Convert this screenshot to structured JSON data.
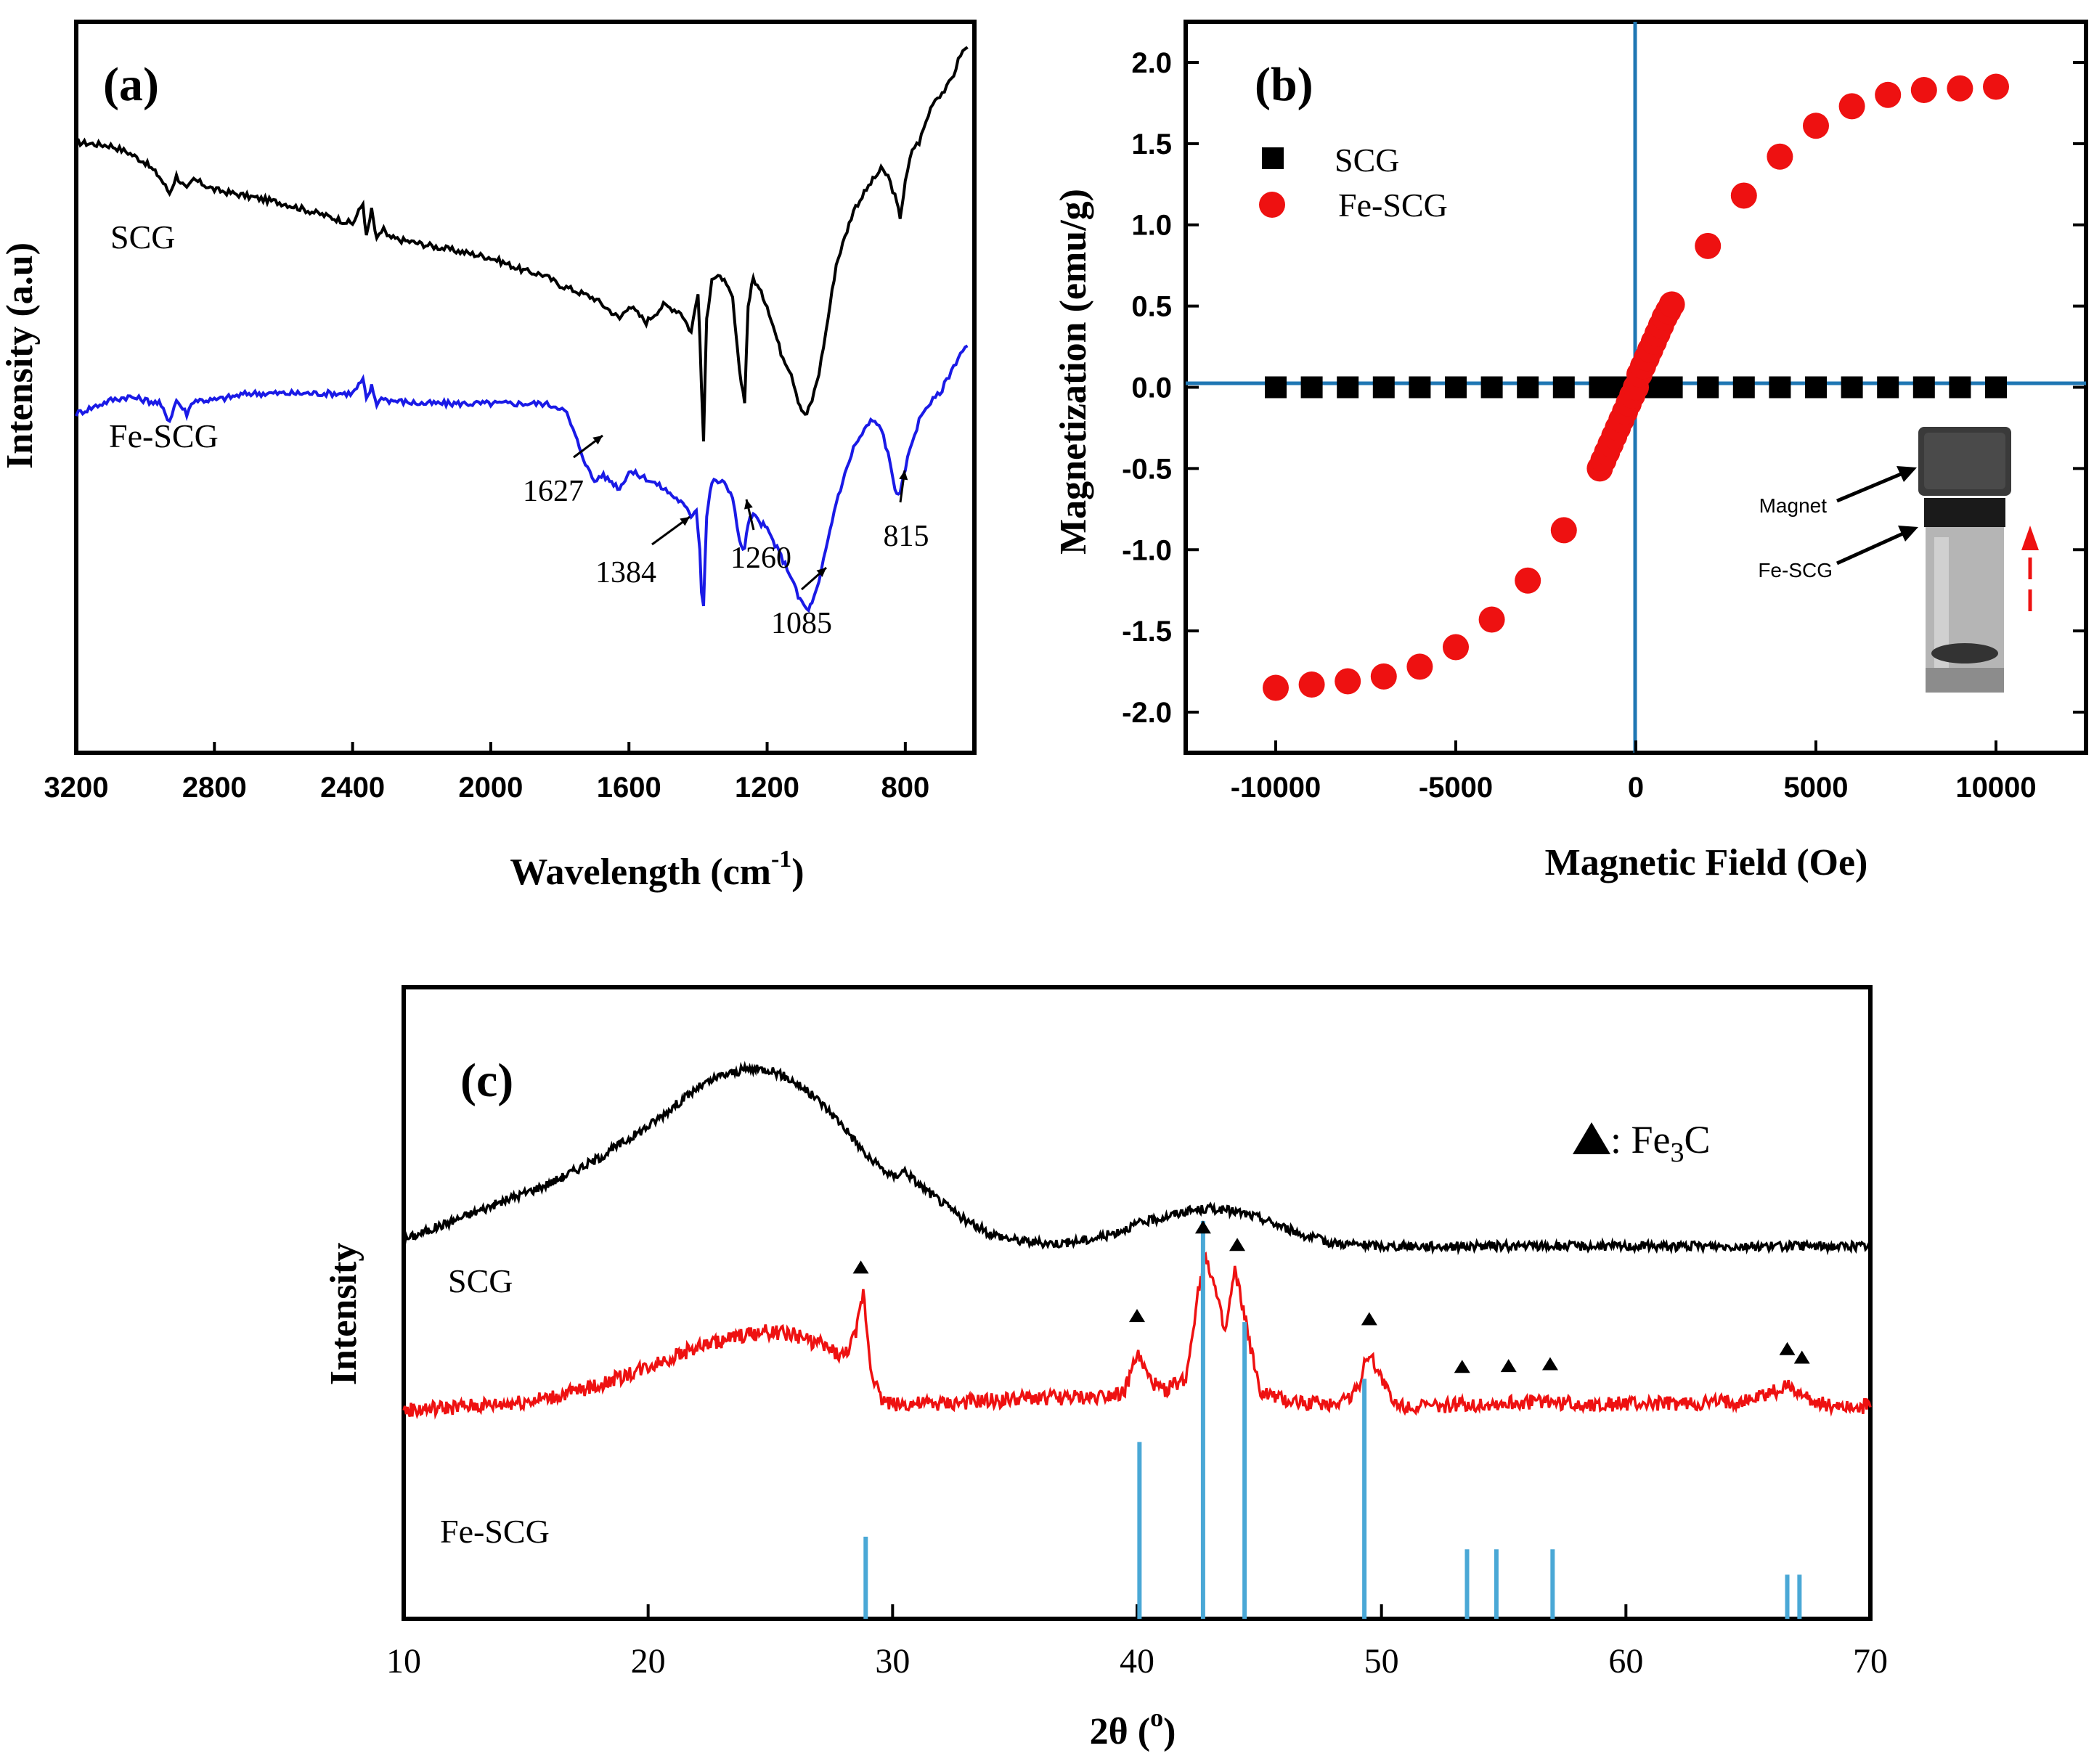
{
  "figure": {
    "panel_a": {
      "tag": "(a)",
      "xlabel": "Wavelength (cm",
      "xlabel_sup": "-1",
      "xlabel_close": ")",
      "ylabel": "Intensity (a.u)"
    },
    "panel_b": {
      "tag": "(b)",
      "xlabel": "Magnetic Field (Oe)",
      "ylabel": "Magnetization (emu/g)",
      "inset_labels": {
        "magnet": "Magnet",
        "sample": "Fe-SCG"
      }
    },
    "panel_c": {
      "tag": "(c)",
      "xlabel": "2θ (",
      "xlabel_sup": "o",
      "xlabel_close": ")",
      "ylabel": "Intensity",
      "legend": {
        "sep": ": Fe",
        "sub": "3",
        "tail": "C"
      }
    }
  },
  "colors": {
    "scg": "#000000",
    "fe_ftir": "#1a1ae6",
    "fe_red": "#ee1111",
    "ref": "#4aa8d6",
    "axisline": "#1f77b4"
  },
  "chart_data": [
    {
      "type": "line",
      "title": "(a)",
      "xlabel": "Wavelength (cm-1)",
      "ylabel": "Intensity (a.u)",
      "xlim": [
        3200,
        600
      ],
      "ylim": [
        0,
        100
      ],
      "xticks": [
        3200,
        2800,
        2400,
        2000,
        1600,
        1200,
        800
      ],
      "series": [
        {
          "name": "SCG",
          "x": [
            3200,
            3100,
            3050,
            3000,
            2960,
            2930,
            2910,
            2880,
            2860,
            2800,
            2700,
            2600,
            2500,
            2400,
            2370,
            2360,
            2345,
            2330,
            2310,
            2300,
            2200,
            2100,
            2000,
            1900,
            1850,
            1800,
            1750,
            1700,
            1650,
            1627,
            1600,
            1550,
            1500,
            1450,
            1420,
            1400,
            1390,
            1384,
            1375,
            1360,
            1330,
            1300,
            1280,
            1265,
            1255,
            1240,
            1200,
            1160,
            1130,
            1110,
            1095,
            1085,
            1070,
            1050,
            1030,
            1000,
            950,
            900,
            870,
            850,
            830,
            815,
            800,
            780,
            760,
            740,
            720,
            700,
            680,
            660,
            640,
            620
          ],
          "y": [
            86,
            85.5,
            84.5,
            83,
            81,
            78.5,
            81,
            79,
            80.5,
            79,
            78,
            77,
            75.5,
            74,
            77,
            72,
            76,
            71.5,
            73.5,
            72,
            71,
            70,
            69,
            67,
            66.5,
            65,
            64,
            63,
            61,
            60,
            62,
            59.5,
            62,
            61,
            58,
            64,
            50,
            42,
            60,
            66,
            66,
            63,
            52,
            48,
            62,
            66,
            62,
            55,
            52,
            48,
            46,
            46,
            48,
            52,
            58,
            68,
            76,
            80,
            82,
            81,
            78,
            75,
            80,
            85,
            86,
            89,
            92,
            93,
            94,
            96,
            99,
            100
          ]
        },
        {
          "name": "Fe-SCG",
          "x": [
            3200,
            3150,
            3100,
            3050,
            3000,
            2960,
            2930,
            2910,
            2880,
            2860,
            2800,
            2700,
            2600,
            2500,
            2400,
            2370,
            2360,
            2345,
            2330,
            2310,
            2300,
            2200,
            2100,
            2000,
            1950,
            1900,
            1850,
            1800,
            1780,
            1750,
            1720,
            1700,
            1680,
            1650,
            1627,
            1600,
            1550,
            1500,
            1450,
            1420,
            1405,
            1395,
            1390,
            1384,
            1375,
            1360,
            1330,
            1300,
            1280,
            1265,
            1255,
            1240,
            1200,
            1160,
            1130,
            1110,
            1095,
            1085,
            1070,
            1050,
            1030,
            1000,
            950,
            900,
            870,
            850,
            830,
            815,
            800,
            780,
            760,
            740,
            720,
            700,
            680,
            660,
            640,
            620
          ],
          "y": [
            46,
            47,
            48,
            48.5,
            48,
            47.5,
            45,
            48,
            46,
            48,
            48,
            49,
            49,
            49,
            49,
            51,
            48,
            50,
            47.5,
            48.5,
            48,
            47.5,
            47.5,
            47.5,
            47.5,
            47.5,
            47.5,
            47,
            46,
            42,
            38,
            36,
            37,
            36,
            35,
            37.5,
            36.5,
            35,
            33,
            31,
            32,
            26,
            20,
            18,
            31,
            36,
            36,
            34,
            27,
            26,
            30,
            31,
            29,
            25,
            22,
            19,
            18,
            17,
            18,
            21,
            26,
            33,
            41,
            45,
            44,
            40,
            35,
            34,
            38,
            42,
            45,
            47,
            48,
            49,
            51,
            53,
            55,
            56
          ]
        }
      ],
      "annotations": [
        {
          "text": "1627",
          "x": 1627
        },
        {
          "text": "1384",
          "x": 1384
        },
        {
          "text": "1260",
          "x": 1260
        },
        {
          "text": "1085",
          "x": 1085
        },
        {
          "text": "815",
          "x": 815
        }
      ],
      "series_labels": [
        "SCG",
        "Fe-SCG"
      ]
    },
    {
      "type": "scatter",
      "title": "(b)",
      "xlabel": "Magnetic Field (Oe)",
      "ylabel": "Magnetization (emu/g)",
      "xlim": [
        -12500,
        12500
      ],
      "ylim": [
        -2.25,
        2.25
      ],
      "xticks": [
        -10000,
        -5000,
        0,
        5000,
        10000
      ],
      "yticks": [
        -2.0,
        -1.5,
        -1.0,
        -0.5,
        0.0,
        0.5,
        1.0,
        1.5,
        2.0
      ],
      "legend_position": "top-left",
      "series": [
        {
          "name": "SCG",
          "marker": "square",
          "x": [
            -10000,
            -9000,
            -8000,
            -7000,
            -6000,
            -5000,
            -4000,
            -3000,
            -2000,
            -1000,
            -500,
            0,
            500,
            1000,
            2000,
            3000,
            4000,
            5000,
            6000,
            7000,
            8000,
            9000,
            10000
          ],
          "y": [
            0,
            0,
            0,
            0,
            0,
            0,
            0,
            0,
            0,
            0,
            0,
            0,
            0,
            0,
            0,
            0,
            0,
            0,
            0,
            0,
            0,
            0,
            0
          ]
        },
        {
          "name": "Fe-SCG",
          "marker": "circle",
          "x": [
            -10000,
            -9000,
            -8000,
            -7000,
            -6000,
            -5000,
            -4000,
            -3000,
            -2000,
            -1000,
            -900,
            -800,
            -700,
            -600,
            -500,
            -400,
            -300,
            -200,
            -100,
            0,
            100,
            200,
            300,
            400,
            500,
            600,
            700,
            800,
            900,
            1000,
            2000,
            3000,
            4000,
            5000,
            6000,
            7000,
            8000,
            9000,
            10000
          ],
          "y": [
            -1.85,
            -1.83,
            -1.81,
            -1.78,
            -1.72,
            -1.6,
            -1.43,
            -1.19,
            -0.88,
            -0.5,
            -0.45,
            -0.4,
            -0.35,
            -0.3,
            -0.25,
            -0.2,
            -0.15,
            -0.1,
            -0.05,
            0.0,
            0.08,
            0.13,
            0.18,
            0.23,
            0.28,
            0.33,
            0.38,
            0.43,
            0.47,
            0.51,
            0.87,
            1.18,
            1.42,
            1.61,
            1.73,
            1.8,
            1.83,
            1.84,
            1.85
          ]
        }
      ]
    },
    {
      "type": "line",
      "title": "(c)",
      "xlabel": "2θ (o)",
      "ylabel": "Intensity",
      "xlim": [
        10,
        70
      ],
      "ylim": [
        0,
        100
      ],
      "xticks": [
        10,
        20,
        30,
        40,
        50,
        60,
        70
      ],
      "series": [
        {
          "name": "SCG",
          "x": [
            10,
            12,
            14,
            16,
            18,
            20,
            21,
            22,
            23,
            24,
            25,
            26,
            27,
            28,
            29,
            30,
            30.5,
            31,
            32,
            33,
            34,
            35,
            36,
            37,
            38,
            39,
            40,
            41,
            42,
            43,
            44,
            45,
            46,
            47,
            48,
            50,
            52,
            55,
            60,
            65,
            70
          ],
          "y": [
            60,
            63,
            66,
            69,
            73,
            78,
            81,
            84,
            86,
            87,
            87,
            85,
            82,
            78,
            73,
            70,
            71,
            69,
            66,
            63,
            61,
            60,
            59.5,
            59.5,
            60,
            61,
            62.5,
            63.5,
            64.5,
            65,
            64.5,
            63.5,
            62,
            60.5,
            59.5,
            59,
            59,
            59,
            59,
            59,
            59
          ]
        },
        {
          "name": "Fe-SCG",
          "x": [
            10,
            12,
            14,
            16,
            18,
            20,
            22,
            24,
            25,
            26,
            27,
            28,
            28.5,
            28.8,
            29.1,
            29.5,
            30,
            32,
            34,
            36,
            38,
            39.5,
            40,
            40.5,
            41,
            42,
            42.5,
            42.8,
            43.2,
            43.6,
            44,
            44.4,
            45,
            46,
            48,
            49,
            49.4,
            49.8,
            50.5,
            52,
            53.5,
            55,
            56.5,
            58,
            60,
            63,
            65,
            66,
            66.8,
            67.3,
            68,
            70
          ],
          "y": [
            33,
            33.5,
            34,
            35,
            37,
            40,
            43,
            45,
            45.5,
            45,
            43.5,
            41.5,
            45,
            52,
            40,
            35,
            34,
            34,
            34.5,
            35,
            35,
            36,
            42,
            38,
            36,
            38,
            52,
            58,
            52,
            45,
            55,
            48,
            36,
            34.5,
            34,
            36,
            42,
            40,
            34,
            33.5,
            34,
            34,
            34.5,
            34,
            34,
            34,
            34.5,
            36,
            37,
            35,
            34,
            33.5
          ]
        },
        {
          "name": "Fe3C reference",
          "type": "stick",
          "x": [
            28.9,
            40.1,
            42.7,
            44.4,
            49.3,
            53.5,
            54.7,
            57.0,
            66.6,
            67.1
          ],
          "y": [
            13,
            28,
            63,
            47,
            38,
            11,
            11,
            11,
            7,
            7
          ]
        }
      ],
      "fe3c_peak_markers": [
        28.7,
        40.0,
        42.7,
        44.1,
        49.5,
        53.3,
        55.2,
        56.9,
        66.6,
        67.2
      ],
      "series_labels": [
        "SCG",
        "Fe-SCG"
      ],
      "legend": "▲: Fe3C"
    }
  ]
}
